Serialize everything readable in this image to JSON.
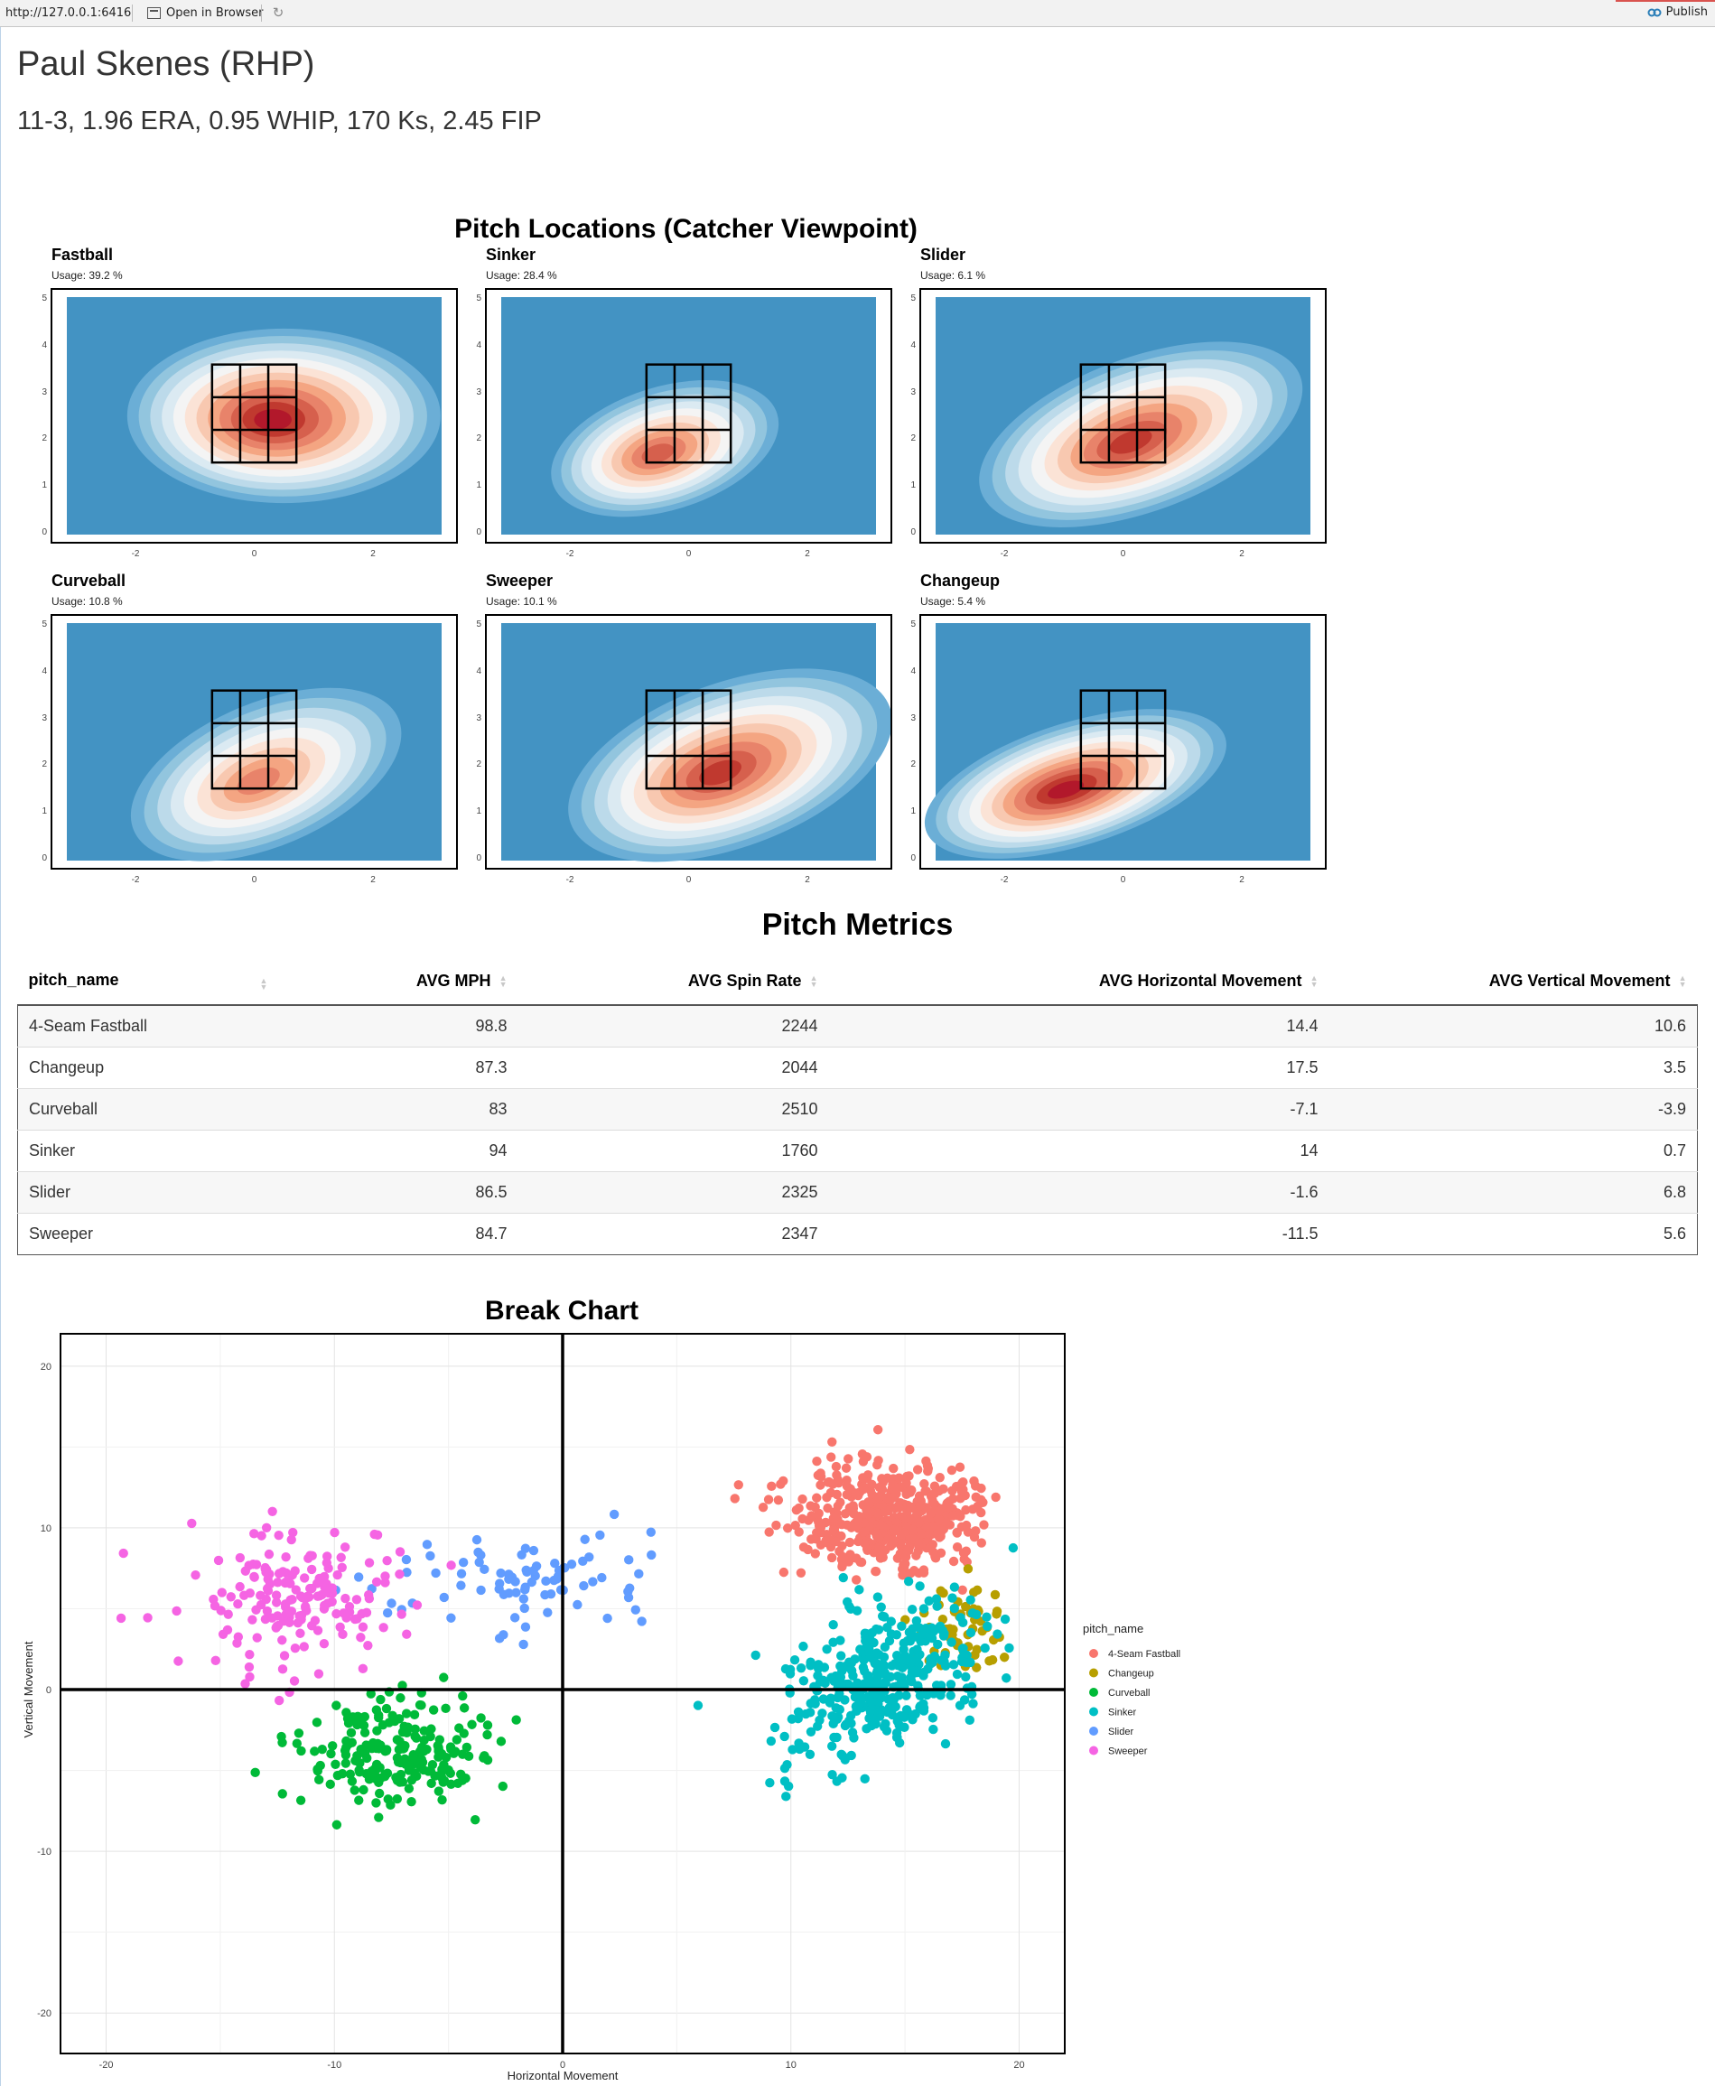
{
  "toolbar": {
    "url": "http://127.0.0.1:6416",
    "open_label": "Open in Browser",
    "publish_label": "Publish"
  },
  "header": {
    "pitcher_name": "Paul Skenes (RHP)",
    "stat_line": "11-3, 1.96 ERA, 0.95 WHIP, 170 Ks, 2.45 FIP"
  },
  "locations": {
    "title": "Pitch Locations (Catcher Viewpoint)",
    "y_ticks": [
      "0",
      "1",
      "2",
      "3",
      "4",
      "5"
    ],
    "x_ticks": [
      "-2",
      "0",
      "2"
    ],
    "colors": {
      "background": "#4393c3",
      "mid": "#f7f7f7",
      "hot": "#b2182b"
    },
    "panels": [
      {
        "name": "Fastball",
        "usage": "Usage: 39.2 %",
        "peak": [
          0.5,
          2.5
        ],
        "spread": [
          1.2,
          0.85
        ],
        "tilt": 0.0,
        "intensity": 1.0
      },
      {
        "name": "Sinker",
        "usage": "Usage: 28.4 %",
        "peak": [
          -0.4,
          1.8
        ],
        "spread": [
          0.9,
          0.6
        ],
        "tilt": -0.3,
        "intensity": 0.75
      },
      {
        "name": "Slider",
        "usage": "Usage: 6.1 %",
        "peak": [
          0.3,
          2.1
        ],
        "spread": [
          1.3,
          0.75
        ],
        "tilt": -0.35,
        "intensity": 0.85
      },
      {
        "name": "Curveball",
        "usage": "Usage: 10.8 %",
        "peak": [
          0.2,
          1.8
        ],
        "spread": [
          1.1,
          0.7
        ],
        "tilt": -0.4,
        "intensity": 0.55
      },
      {
        "name": "Sweeper",
        "usage": "Usage: 10.1 %",
        "peak": [
          0.7,
          2.0
        ],
        "spread": [
          1.3,
          0.8
        ],
        "tilt": -0.35,
        "intensity": 0.8
      },
      {
        "name": "Changeup",
        "usage": "Usage: 5.4 %",
        "peak": [
          -0.8,
          1.6
        ],
        "spread": [
          1.2,
          0.6
        ],
        "tilt": -0.3,
        "intensity": 1.0
      }
    ]
  },
  "metrics": {
    "title": "Pitch Metrics",
    "columns": [
      "pitch_name",
      "AVG MPH",
      "AVG Spin Rate",
      "AVG Horizontal Movement",
      "AVG Vertical Movement"
    ],
    "rows": [
      [
        "4-Seam Fastball",
        "98.8",
        "2244",
        "14.4",
        "10.6"
      ],
      [
        "Changeup",
        "87.3",
        "2044",
        "17.5",
        "3.5"
      ],
      [
        "Curveball",
        "83",
        "2510",
        "-7.1",
        "-3.9"
      ],
      [
        "Sinker",
        "94",
        "1760",
        "14",
        "0.7"
      ],
      [
        "Slider",
        "86.5",
        "2325",
        "-1.6",
        "6.8"
      ],
      [
        "Sweeper",
        "84.7",
        "2347",
        "-11.5",
        "5.6"
      ]
    ]
  },
  "chart_data": {
    "type": "scatter",
    "title": "Break Chart",
    "xlabel": "Horizontal Movement",
    "ylabel": "Vertical Movement",
    "xlim": [
      -22,
      22
    ],
    "ylim": [
      -22.5,
      22
    ],
    "x_ticks": [
      -20,
      -10,
      0,
      10,
      20
    ],
    "y_ticks": [
      -20,
      -10,
      0,
      10,
      20
    ],
    "grid": true,
    "legend_title": "pitch_name",
    "legend_position": "right",
    "series": [
      {
        "name": "4-Seam Fastball",
        "color": "#F8766D",
        "center": [
          14.4,
          10.6
        ],
        "spread": [
          2.2,
          1.7
        ],
        "n": 480
      },
      {
        "name": "Changeup",
        "color": "#B79F00",
        "center": [
          17.5,
          3.5
        ],
        "spread": [
          1.1,
          1.4
        ],
        "n": 60
      },
      {
        "name": "Curveball",
        "color": "#00BA38",
        "center": [
          -7.1,
          -3.9
        ],
        "spread": [
          2.0,
          1.8
        ],
        "n": 210
      },
      {
        "name": "Sinker",
        "color": "#00BFC4",
        "center": [
          14.0,
          0.7
        ],
        "spread": [
          2.3,
          2.3
        ],
        "n": 380
      },
      {
        "name": "Slider",
        "color": "#619CFF",
        "center": [
          -1.6,
          6.8
        ],
        "spread": [
          3.2,
          1.7
        ],
        "n": 85
      },
      {
        "name": "Sweeper",
        "color": "#F564E3",
        "center": [
          -11.5,
          5.6
        ],
        "spread": [
          2.6,
          2.0
        ],
        "n": 180
      }
    ]
  }
}
